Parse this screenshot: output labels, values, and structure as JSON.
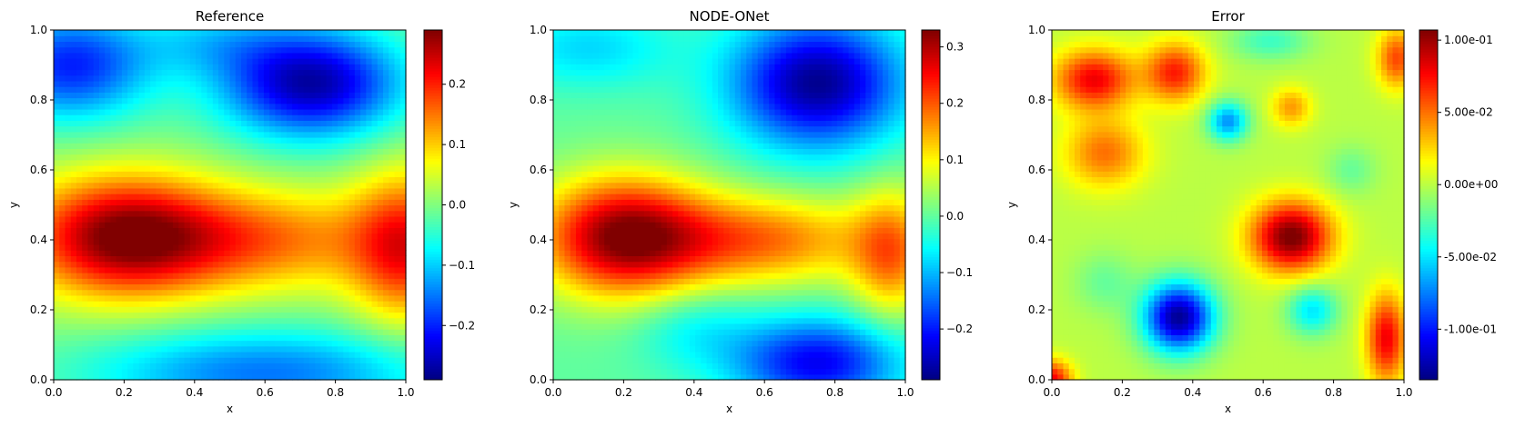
{
  "chart_data": [
    {
      "type": "heatmap",
      "title": "Reference",
      "xlabel": "x",
      "ylabel": "y",
      "xlim": [
        0,
        1
      ],
      "ylim": [
        0,
        1
      ],
      "x_ticks": [
        "0.0",
        "0.2",
        "0.4",
        "0.6",
        "0.8",
        "1.0"
      ],
      "y_ticks": [
        "0.0",
        "0.2",
        "0.4",
        "0.6",
        "0.8",
        "1.0"
      ],
      "colormap": "jet",
      "colorbar": {
        "range": [
          -0.29,
          0.29
        ],
        "ticks": [
          -0.2,
          -0.1,
          0.0,
          0.1,
          0.2
        ],
        "tick_labels": [
          "−0.2",
          "−0.1",
          "0.0",
          "0.1",
          "0.2"
        ]
      },
      "features": [
        {
          "x": 0.2,
          "y": 0.41,
          "value": 0.29,
          "sx": 0.2,
          "sy": 0.12
        },
        {
          "x": 1.0,
          "y": 0.38,
          "value": 0.2,
          "sx": 0.11,
          "sy": 0.15
        },
        {
          "x": 0.73,
          "y": 0.85,
          "value": -0.27,
          "sx": 0.18,
          "sy": 0.11
        },
        {
          "x": 0.05,
          "y": 0.9,
          "value": -0.2,
          "sx": 0.16,
          "sy": 0.11
        },
        {
          "x": 0.45,
          "y": 0.97,
          "value": -0.07,
          "sx": 0.15,
          "sy": 0.07
        },
        {
          "x": 0.6,
          "y": 0.02,
          "value": -0.15,
          "sx": 0.35,
          "sy": 0.09
        },
        {
          "x": 0.62,
          "y": 0.4,
          "value": 0.14,
          "sx": 0.24,
          "sy": 0.1
        }
      ]
    },
    {
      "type": "heatmap",
      "title": "NODE-ONet",
      "xlabel": "x",
      "ylabel": "y",
      "xlim": [
        0,
        1
      ],
      "ylim": [
        0,
        1
      ],
      "x_ticks": [
        "0.0",
        "0.2",
        "0.4",
        "0.6",
        "0.8",
        "1.0"
      ],
      "y_ticks": [
        "0.0",
        "0.2",
        "0.4",
        "0.6",
        "0.8",
        "1.0"
      ],
      "colormap": "jet",
      "colorbar": {
        "range": [
          -0.29,
          0.33
        ],
        "ticks": [
          -0.2,
          -0.1,
          0.0,
          0.1,
          0.2,
          0.3
        ],
        "tick_labels": [
          "−0.2",
          "−0.1",
          "0.0",
          "0.1",
          "0.2",
          "0.3"
        ]
      },
      "features": [
        {
          "x": 0.2,
          "y": 0.41,
          "value": 0.32,
          "sx": 0.17,
          "sy": 0.12
        },
        {
          "x": 0.6,
          "y": 0.4,
          "value": 0.18,
          "sx": 0.22,
          "sy": 0.09
        },
        {
          "x": 0.96,
          "y": 0.36,
          "value": 0.17,
          "sx": 0.08,
          "sy": 0.13
        },
        {
          "x": 0.75,
          "y": 0.85,
          "value": -0.28,
          "sx": 0.17,
          "sy": 0.13
        },
        {
          "x": 0.1,
          "y": 0.95,
          "value": -0.08,
          "sx": 0.17,
          "sy": 0.08
        },
        {
          "x": 0.75,
          "y": 0.05,
          "value": -0.22,
          "sx": 0.17,
          "sy": 0.09
        },
        {
          "x": 0.4,
          "y": 0.15,
          "value": -0.06,
          "sx": 0.12,
          "sy": 0.08
        }
      ]
    },
    {
      "type": "heatmap",
      "title": "Error",
      "xlabel": "x",
      "ylabel": "y",
      "xlim": [
        0,
        1
      ],
      "ylim": [
        0,
        1
      ],
      "x_ticks": [
        "0.0",
        "0.2",
        "0.4",
        "0.6",
        "0.8",
        "1.0"
      ],
      "y_ticks": [
        "0.0",
        "0.2",
        "0.4",
        "0.6",
        "0.8",
        "1.0"
      ],
      "colormap": "jet",
      "colorbar": {
        "range": [
          -0.135,
          0.107
        ],
        "ticks": [
          -0.1,
          -0.05,
          0.0,
          0.05,
          0.1
        ],
        "tick_labels": [
          "-1.00e-01",
          "-5.00e-02",
          "0.00e+00",
          "5.00e-02",
          "1.00e-01"
        ]
      },
      "features": [
        {
          "x": 0.68,
          "y": 0.41,
          "value": 0.11,
          "sx": 0.08,
          "sy": 0.07
        },
        {
          "x": 0.12,
          "y": 0.86,
          "value": 0.08,
          "sx": 0.08,
          "sy": 0.06
        },
        {
          "x": 0.35,
          "y": 0.88,
          "value": 0.07,
          "sx": 0.06,
          "sy": 0.06
        },
        {
          "x": 0.15,
          "y": 0.65,
          "value": 0.05,
          "sx": 0.08,
          "sy": 0.07
        },
        {
          "x": 0.95,
          "y": 0.12,
          "value": 0.08,
          "sx": 0.04,
          "sy": 0.09
        },
        {
          "x": 0.98,
          "y": 0.92,
          "value": 0.06,
          "sx": 0.04,
          "sy": 0.06
        },
        {
          "x": 0.68,
          "y": 0.78,
          "value": 0.04,
          "sx": 0.04,
          "sy": 0.04
        },
        {
          "x": 0.0,
          "y": 0.0,
          "value": 0.08,
          "sx": 0.04,
          "sy": 0.04
        },
        {
          "x": 0.36,
          "y": 0.18,
          "value": -0.13,
          "sx": 0.07,
          "sy": 0.07
        },
        {
          "x": 0.5,
          "y": 0.74,
          "value": -0.07,
          "sx": 0.04,
          "sy": 0.04
        },
        {
          "x": 0.74,
          "y": 0.2,
          "value": -0.05,
          "sx": 0.05,
          "sy": 0.05
        },
        {
          "x": 0.62,
          "y": 0.97,
          "value": -0.03,
          "sx": 0.08,
          "sy": 0.04
        },
        {
          "x": 0.85,
          "y": 0.6,
          "value": -0.02,
          "sx": 0.05,
          "sy": 0.05
        },
        {
          "x": 0.15,
          "y": 0.28,
          "value": -0.02,
          "sx": 0.06,
          "sy": 0.06
        }
      ]
    }
  ]
}
